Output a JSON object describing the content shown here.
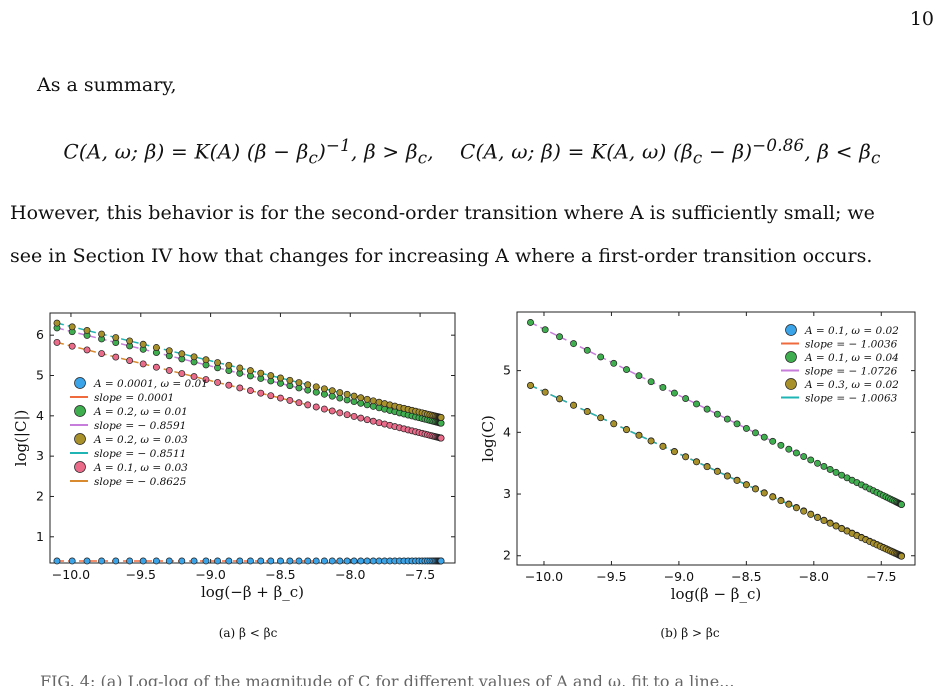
{
  "page_number": "10",
  "intro": "As a summary,",
  "equation": "C(A, ω; β) = K(A) (β − β_c)^{−1}, β > β_c,    C(A, ω; β) = K(A, ω) (β_c − β)^{−0.86}, β < β_c",
  "paragraph_lines": [
    "However, this behavior is for the second-order transition where A is sufficiently small; we",
    "see in Section IV how that changes for increasing A where a first-order transition occurs."
  ],
  "figure_a": {
    "caption": "(a) β < βc",
    "chart_data": {
      "type": "scatter",
      "xlabel": "log(−β + β_c)",
      "ylabel": "log(|C|)",
      "xlim": [
        -10.15,
        -7.25
      ],
      "ylim": [
        0.35,
        6.55
      ],
      "x_ticks": [
        -10.0,
        -9.5,
        -9.0,
        -8.5,
        -8.0,
        -7.5
      ],
      "x_tick_labels": [
        "−10.0",
        "−9.5",
        "−9.0",
        "−8.5",
        "−8.0",
        "−7.5"
      ],
      "y_ticks": [
        1,
        2,
        3,
        4,
        5,
        6
      ],
      "y_tick_labels": [
        "1",
        "2",
        "3",
        "4",
        "5",
        "6"
      ],
      "x_range": [
        -10.1,
        -7.35
      ],
      "legend_position": "center-left",
      "series": [
        {
          "name": "A = 0.0001, ω = 0.01",
          "marker_color": "#3ba3e8",
          "intercept": 0.4,
          "slope": 0.0001,
          "fit_name": "slope = 0.0001",
          "fit_color": "#ef6a3c"
        },
        {
          "name": "A = 0.2, ω = 0.01",
          "marker_color": "#3fae4f",
          "intercept": 6.18,
          "slope": -0.8591,
          "fit_name": "slope = − 0.8591",
          "fit_color": "#c77ddb"
        },
        {
          "name": "A = 0.2, ω = 0.03",
          "marker_color": "#a8902a",
          "intercept": 6.3,
          "slope": -0.8511,
          "fit_name": "slope = − 0.8511",
          "fit_color": "#1fb5b5"
        },
        {
          "name": "A = 0.1, ω = 0.03",
          "marker_color": "#ea6a8a",
          "intercept": 5.82,
          "slope": -0.8625,
          "fit_name": "slope = − 0.8625",
          "fit_color": "#d98a2e"
        }
      ]
    }
  },
  "figure_b": {
    "caption": "(b) β > βc",
    "chart_data": {
      "type": "scatter",
      "xlabel": "log(β − β_c)",
      "ylabel": "log(C)",
      "xlim": [
        -10.2,
        -7.25
      ],
      "ylim": [
        1.85,
        5.95
      ],
      "x_ticks": [
        -10.0,
        -9.5,
        -9.0,
        -8.5,
        -8.0,
        -7.5
      ],
      "x_tick_labels": [
        "−10.0",
        "−9.5",
        "−9.0",
        "−8.5",
        "−8.0",
        "−7.5"
      ],
      "y_ticks": [
        2,
        3,
        4,
        5
      ],
      "y_tick_labels": [
        "2",
        "3",
        "4",
        "5"
      ],
      "x_range": [
        -10.1,
        -7.35
      ],
      "legend_position": "top-right",
      "series": [
        {
          "name": "A = 0.1, ω = 0.02",
          "marker_color": "#3ba3e8",
          "intercept": 4.76,
          "slope": -1.0036,
          "fit_name": "slope = − 1.0036",
          "fit_color": "#ef6a3c"
        },
        {
          "name": "A = 0.1, ω = 0.04",
          "marker_color": "#3fae4f",
          "intercept": 5.78,
          "slope": -1.0726,
          "fit_name": "slope = − 1.0726",
          "fit_color": "#c77ddb"
        },
        {
          "name": "A = 0.3, ω = 0.02",
          "marker_color": "#a8902a",
          "intercept": 4.76,
          "slope": -1.0063,
          "fit_name": "slope = − 1.0063",
          "fit_color": "#1fb5b5"
        }
      ]
    }
  },
  "bottom_text": "FIG. 4: (a) Log-log of the magnitude of C for different values of A and ω, fit to a line...",
  "colors": {
    "text": "#111111",
    "axis": "#222222",
    "marker_edge": "#222222"
  }
}
